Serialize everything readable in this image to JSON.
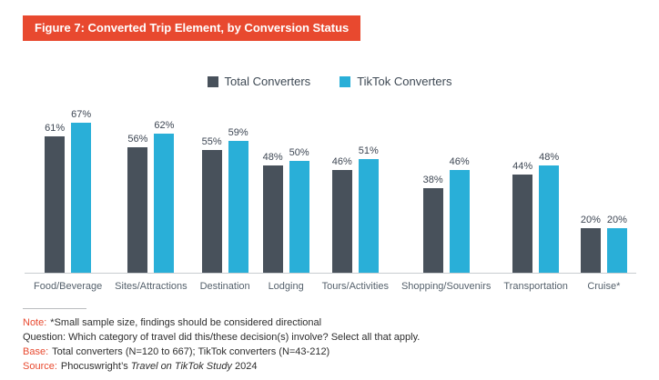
{
  "header": {
    "title": "Figure 7: Converted Trip Element, by Conversion Status",
    "banner_color": "#e8492f"
  },
  "chart_data": {
    "type": "bar",
    "title": "Figure 7: Converted Trip Element, by Conversion Status",
    "categories": [
      "Food/Beverage",
      "Sites/Attractions",
      "Destination",
      "Lodging",
      "Tours/Activities",
      "Shopping/Souvenirs",
      "Transportation",
      "Cruise*"
    ],
    "series": [
      {
        "name": "Total Converters",
        "color": "#48515b",
        "values": [
          61,
          56,
          55,
          48,
          46,
          38,
          44,
          20
        ]
      },
      {
        "name": "TikTok Converters",
        "color": "#29afd8",
        "values": [
          67,
          62,
          59,
          50,
          51,
          46,
          48,
          20
        ]
      }
    ],
    "value_suffix": "%",
    "value_labels": "above-bars",
    "xlabel": "",
    "ylabel": "",
    "ylim": [
      0,
      100
    ],
    "grid": false,
    "legend_position": "top-center"
  },
  "notes": {
    "accent_color": "#e8492f",
    "note_label": "Note:",
    "note_text": "*Small sample size, findings should be considered directional",
    "question_text": "Question: Which category of travel did this/these decision(s) involve? Select all that apply.",
    "base_label": "Base:",
    "base_text": "Total converters (N=120 to 667); TikTok converters (N=43-212)",
    "source_label": "Source:",
    "source_prefix": "Phocuswright’s",
    "source_italic": "Travel on TikTok Study",
    "source_suffix": "2024"
  }
}
